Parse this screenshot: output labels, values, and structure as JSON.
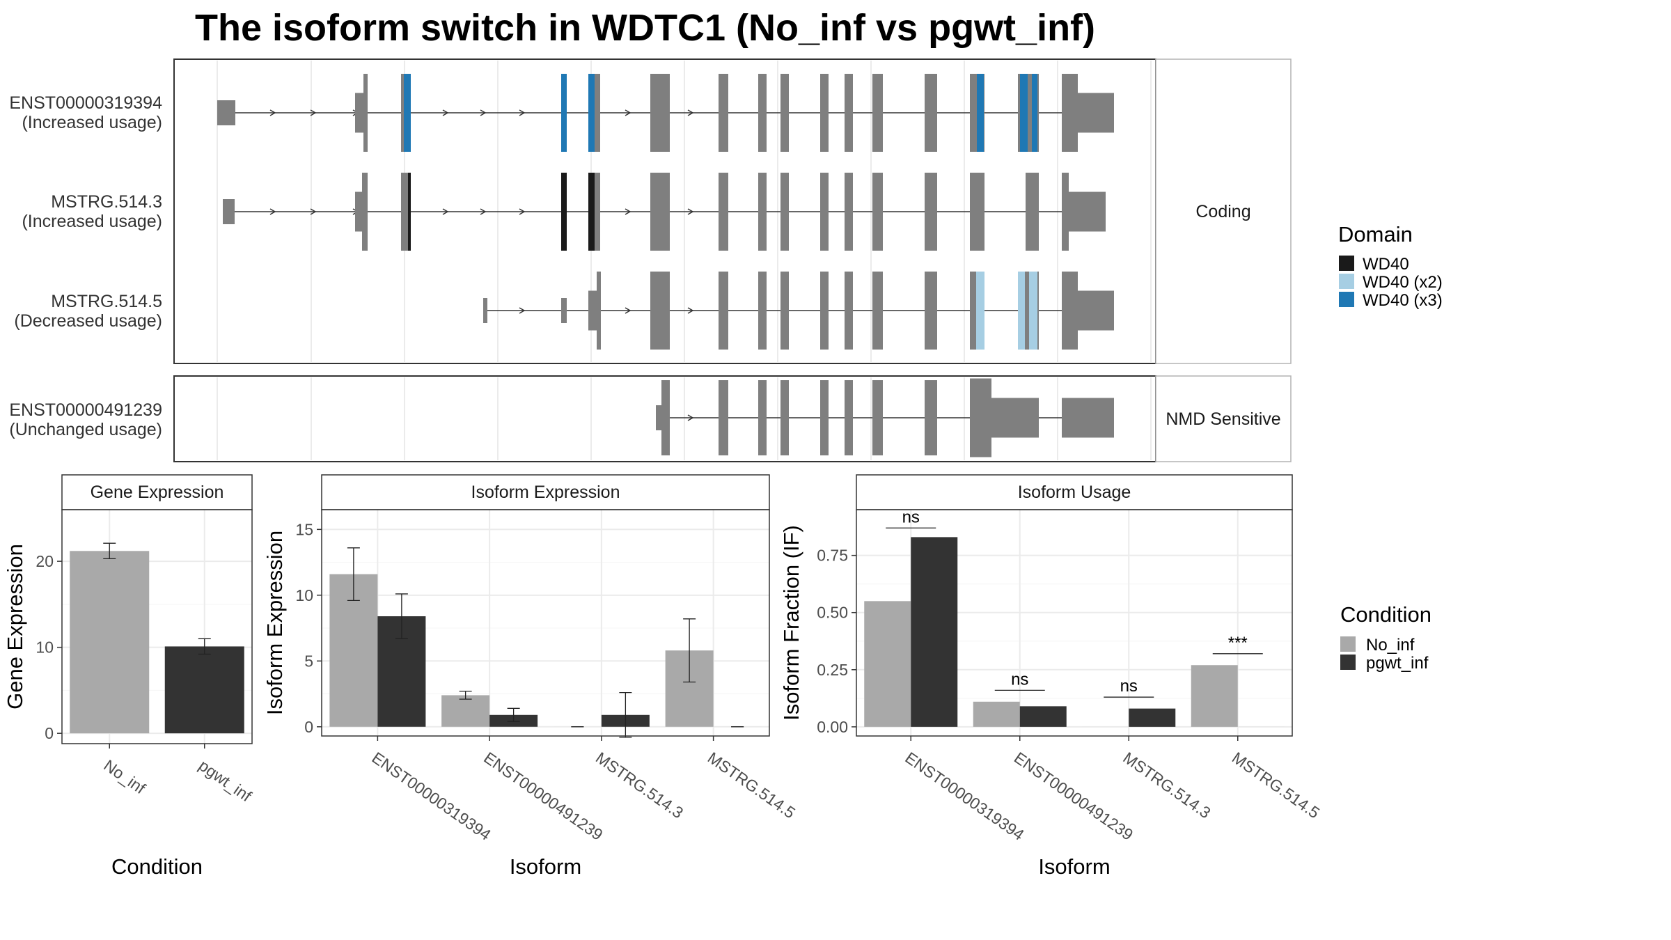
{
  "title": "The isoform switch in WDTC1 (No_inf vs pgwt_inf)",
  "colors": {
    "exon": "#7f7f7f",
    "wd40": "#1a1a1a",
    "wd40_x2": "#a6cee3",
    "wd40_x3": "#1f78b4",
    "no_inf": "#a9a9a9",
    "pgwt_inf": "#333333"
  },
  "structure": {
    "panels": [
      {
        "label": "Coding",
        "isoforms": [
          {
            "id": "ENST00000319394",
            "usage": "(Increased usage)"
          },
          {
            "id": "MSTRG.514.3",
            "usage": "(Increased usage)"
          },
          {
            "id": "MSTRG.514.5",
            "usage": "(Decreased usage)"
          }
        ]
      },
      {
        "label": "NMD Sensitive",
        "isoforms": [
          {
            "id": "ENST00000491239",
            "usage": "(Unchanged usage)"
          }
        ]
      }
    ]
  },
  "domain_legend": {
    "title": "Domain",
    "items": [
      "WD40",
      "WD40 (x2)",
      "WD40 (x3)"
    ]
  },
  "condition_legend": {
    "title": "Condition",
    "items": [
      "No_inf",
      "pgwt_inf"
    ]
  },
  "chart_data": [
    {
      "type": "bar",
      "title": "Gene Expression",
      "xlabel": "Condition",
      "ylabel": "Gene Expression",
      "categories": [
        "No_inf",
        "pgwt_inf"
      ],
      "ylim": [
        -1.2,
        26
      ],
      "yticks": [
        0,
        10,
        20
      ],
      "series": [
        {
          "name": "Gene",
          "values": [
            21.2,
            10.1
          ],
          "err": [
            0.9,
            0.9
          ]
        }
      ]
    },
    {
      "type": "bar",
      "title": "Isoform Expression",
      "xlabel": "Isoform",
      "ylabel": "Isoform Expression",
      "categories": [
        "ENST00000319394",
        "ENST00000491239",
        "MSTRG.514.3",
        "MSTRG.514.5"
      ],
      "ylim": [
        -0.7,
        16.5
      ],
      "yticks": [
        0,
        5,
        10,
        15
      ],
      "series": [
        {
          "name": "No_inf",
          "values": [
            11.6,
            2.4,
            0,
            5.8
          ],
          "err": [
            2.0,
            0.3,
            0,
            2.4
          ]
        },
        {
          "name": "pgwt_inf",
          "values": [
            8.4,
            0.9,
            0.9,
            0
          ],
          "err": [
            1.7,
            0.5,
            1.7,
            0
          ]
        }
      ]
    },
    {
      "type": "bar",
      "title": "Isoform Usage",
      "xlabel": "Isoform",
      "ylabel": "Isoform Fraction (IF)",
      "categories": [
        "ENST00000319394",
        "ENST00000491239",
        "MSTRG.514.3",
        "MSTRG.514.5"
      ],
      "ylim": [
        -0.04,
        0.95
      ],
      "yticks": [
        "0.00",
        "0.25",
        "0.50",
        "0.75"
      ],
      "series": [
        {
          "name": "No_inf",
          "values": [
            0.55,
            0.11,
            0,
            0.27
          ]
        },
        {
          "name": "pgwt_inf",
          "values": [
            0.83,
            0.09,
            0.08,
            0
          ]
        }
      ],
      "significance": [
        "ns",
        "ns",
        "ns",
        "***"
      ],
      "sig_y": [
        0.87,
        0.16,
        0.13,
        0.32
      ]
    }
  ]
}
